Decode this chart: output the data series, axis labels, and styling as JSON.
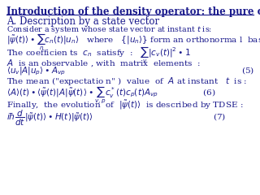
{
  "title_line1": "Introduction of the density operator: the pure case",
  "title_line2": "A. Description by a state vector",
  "subtitle": "Consider a system whose state vector at instant $t$ is:",
  "text_color": "#1a1a8c",
  "bg_color": "#ffffff",
  "title_fontsize": 8.5,
  "subtitle_fontsize": 6.8,
  "body_fontsize": 7.5
}
